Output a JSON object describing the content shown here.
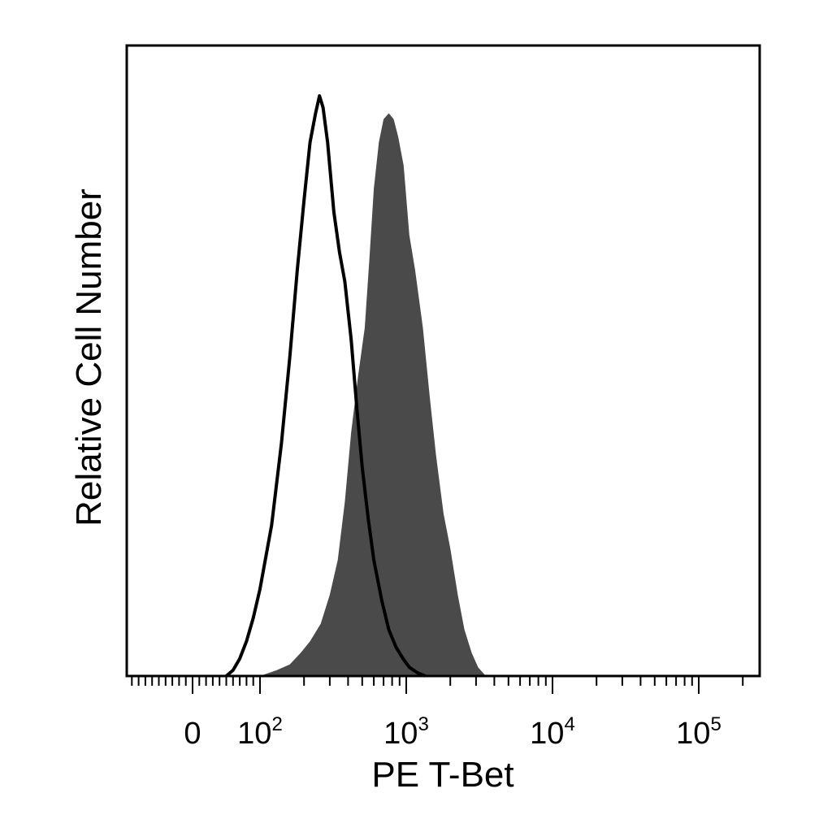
{
  "chart_data": {
    "type": "area",
    "xlabel": "PE T-Bet",
    "ylabel": "Relative Cell Number",
    "x_scale": "biexponential",
    "x_range": [
      -40,
      250000
    ],
    "y_range": [
      0,
      1
    ],
    "grid": false,
    "legend": "none",
    "tick_labels": [
      {
        "value": 0,
        "base": "0",
        "exp": ""
      },
      {
        "value": 100,
        "base": "10",
        "exp": "2"
      },
      {
        "value": 1000,
        "base": "10",
        "exp": "3"
      },
      {
        "value": 10000,
        "base": "10",
        "exp": "4"
      },
      {
        "value": 100000,
        "base": "10",
        "exp": "5"
      }
    ],
    "series": [
      {
        "style": "outline",
        "color": "#000000",
        "points": [
          [
            50,
            0
          ],
          [
            60,
            0.01
          ],
          [
            70,
            0.03
          ],
          [
            80,
            0.06
          ],
          [
            90,
            0.1
          ],
          [
            100,
            0.15
          ],
          [
            120,
            0.26
          ],
          [
            140,
            0.4
          ],
          [
            160,
            0.55
          ],
          [
            180,
            0.7
          ],
          [
            200,
            0.82
          ],
          [
            220,
            0.92
          ],
          [
            240,
            0.97
          ],
          [
            255,
            1.0
          ],
          [
            270,
            0.98
          ],
          [
            290,
            0.92
          ],
          [
            320,
            0.8
          ],
          [
            350,
            0.73
          ],
          [
            380,
            0.68
          ],
          [
            420,
            0.58
          ],
          [
            460,
            0.46
          ],
          [
            500,
            0.36
          ],
          [
            550,
            0.27
          ],
          [
            600,
            0.2
          ],
          [
            680,
            0.13
          ],
          [
            760,
            0.08
          ],
          [
            850,
            0.05
          ],
          [
            950,
            0.03
          ],
          [
            1050,
            0.015
          ],
          [
            1200,
            0.005
          ],
          [
            1350,
            0
          ]
        ]
      },
      {
        "style": "filled",
        "color": "#4a4a4a",
        "points": [
          [
            100,
            0
          ],
          [
            130,
            0.01
          ],
          [
            160,
            0.02
          ],
          [
            190,
            0.04
          ],
          [
            220,
            0.06
          ],
          [
            260,
            0.09
          ],
          [
            300,
            0.14
          ],
          [
            340,
            0.2
          ],
          [
            380,
            0.3
          ],
          [
            420,
            0.42
          ],
          [
            470,
            0.52
          ],
          [
            520,
            0.6
          ],
          [
            560,
            0.72
          ],
          [
            600,
            0.84
          ],
          [
            650,
            0.92
          ],
          [
            700,
            0.96
          ],
          [
            760,
            0.97
          ],
          [
            820,
            0.96
          ],
          [
            880,
            0.93
          ],
          [
            960,
            0.88
          ],
          [
            1050,
            0.76
          ],
          [
            1150,
            0.7
          ],
          [
            1300,
            0.6
          ],
          [
            1450,
            0.48
          ],
          [
            1600,
            0.38
          ],
          [
            1800,
            0.28
          ],
          [
            2000,
            0.22
          ],
          [
            2250,
            0.14
          ],
          [
            2500,
            0.08
          ],
          [
            2800,
            0.04
          ],
          [
            3100,
            0.015
          ],
          [
            3500,
            0
          ]
        ]
      }
    ]
  }
}
